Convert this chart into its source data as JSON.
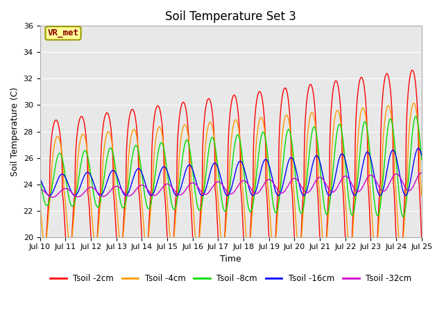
{
  "title": "Soil Temperature Set 3",
  "xlabel": "Time",
  "ylabel": "Soil Temperature (C)",
  "xlim": [
    0,
    15
  ],
  "ylim": [
    20,
    36
  ],
  "yticks": [
    20,
    22,
    24,
    26,
    28,
    30,
    32,
    34,
    36
  ],
  "xtick_positions": [
    0,
    1,
    2,
    3,
    4,
    5,
    6,
    7,
    8,
    9,
    10,
    11,
    12,
    13,
    14,
    15
  ],
  "xtick_labels": [
    "Jul 10",
    "Jul 11",
    "Jul 12",
    "Jul 13",
    "Jul 14",
    "Jul 15",
    "Jul 16",
    "Jul 17",
    "Jul 18",
    "Jul 19",
    "Jul 20",
    "Jul 21",
    "Jul 22",
    "Jul 23",
    "Jul 24",
    "Jul 25"
  ],
  "legend_labels": [
    "Tsoil -2cm",
    "Tsoil -4cm",
    "Tsoil -8cm",
    "Tsoil -16cm",
    "Tsoil -32cm"
  ],
  "line_colors": [
    "#ff0000",
    "#ff9900",
    "#00dd00",
    "#0000ff",
    "#cc00cc"
  ],
  "background_color": "#e8e8e8",
  "annotation_text": "VR_met",
  "annotation_box_color": "#ffff99",
  "annotation_box_edge": "#999900",
  "annotation_text_color": "#8B0000",
  "title_fontsize": 12,
  "label_fontsize": 9,
  "tick_fontsize": 8
}
